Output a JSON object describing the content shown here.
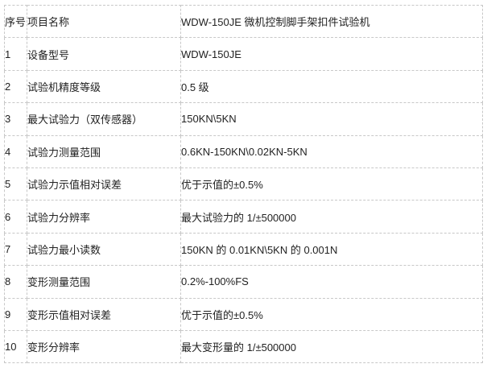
{
  "table": {
    "header": [
      "序号",
      "项目名称",
      "WDW-150JE 微机控制脚手架扣件试验机"
    ],
    "rows": [
      [
        "1",
        "设备型号",
        "WDW-150JE"
      ],
      [
        "2",
        "试验机精度等级",
        "0.5 级"
      ],
      [
        "3",
        "最大试验力（双传感器）",
        "150KN\\5KN"
      ],
      [
        "4",
        "试验力测量范围",
        "0.6KN-150KN\\0.02KN-5KN"
      ],
      [
        "5",
        "试验力示值相对误差",
        "优于示值的±0.5%"
      ],
      [
        "6",
        "试验力分辨率",
        "最大试验力的 1/±500000"
      ],
      [
        "7",
        "试验力最小读数",
        "150KN 的 0.01KN\\5KN 的 0.001N"
      ],
      [
        "8",
        "变形测量范围",
        "0.2%-100%FS"
      ],
      [
        "9",
        "变形示值相对误差",
        "优于示值的±0.5%"
      ],
      [
        "10",
        "变形分辨率",
        "最大变形量的 1/±500000"
      ]
    ]
  }
}
